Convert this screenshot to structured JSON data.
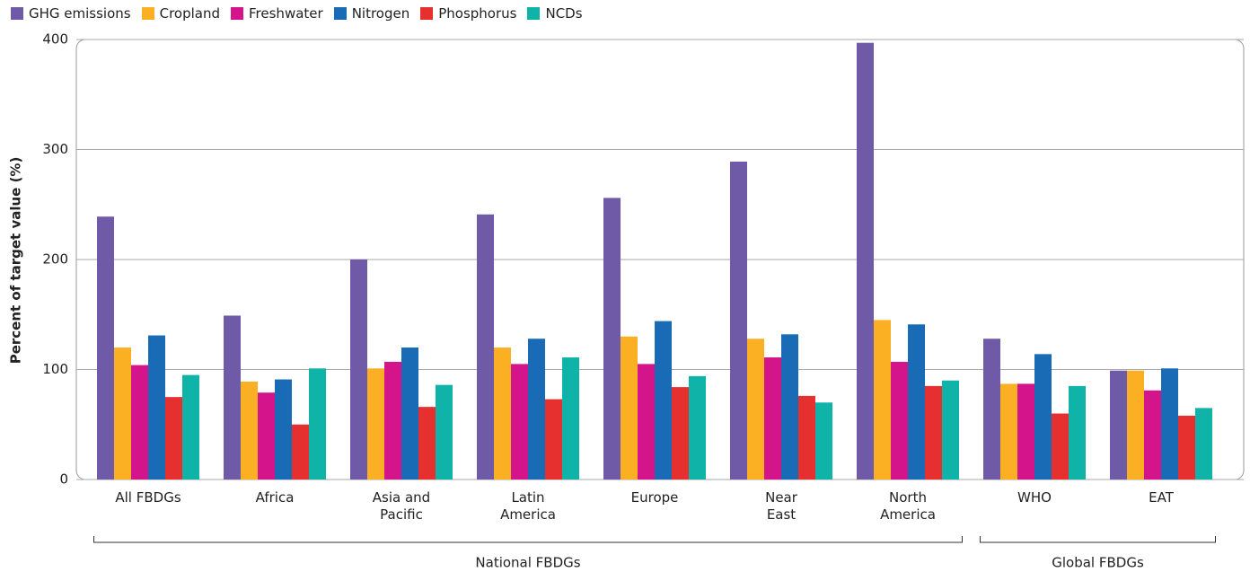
{
  "chart_data": {
    "type": "bar",
    "ylabel": "Percent of target value (%)",
    "categories": [
      "All FBDGs",
      "Africa",
      "Asia and\nPacific",
      "Latin\nAmerica",
      "Europe",
      "Near\nEast",
      "North\nAmerica",
      "WHO",
      "EAT"
    ],
    "groups": [
      "National FBDGs",
      "Global FBDGs"
    ],
    "series": [
      {
        "name": "GHG emissions",
        "color": "#6f5aa8",
        "values": [
          239,
          149,
          200,
          241,
          256,
          289,
          397,
          128,
          99
        ]
      },
      {
        "name": "Cropland",
        "color": "#fbb024",
        "values": [
          120,
          89,
          101,
          120,
          130,
          128,
          145,
          87,
          99
        ]
      },
      {
        "name": "Freshwater",
        "color": "#d4148a",
        "values": [
          104,
          79,
          107,
          105,
          105,
          111,
          107,
          87,
          81
        ]
      },
      {
        "name": "Nitrogen",
        "color": "#1a6bb5",
        "values": [
          131,
          91,
          120,
          128,
          144,
          132,
          141,
          114,
          101
        ]
      },
      {
        "name": "Phosphorus",
        "color": "#e63030",
        "values": [
          75,
          50,
          66,
          73,
          84,
          76,
          85,
          60,
          58
        ]
      },
      {
        "name": "NCDs",
        "color": "#10b3a8",
        "values": [
          95,
          101,
          86,
          111,
          94,
          70,
          90,
          85,
          65
        ]
      }
    ],
    "ylim": [
      0,
      400
    ],
    "yticks": [
      0,
      100,
      200,
      300,
      400
    ],
    "grid": true
  }
}
